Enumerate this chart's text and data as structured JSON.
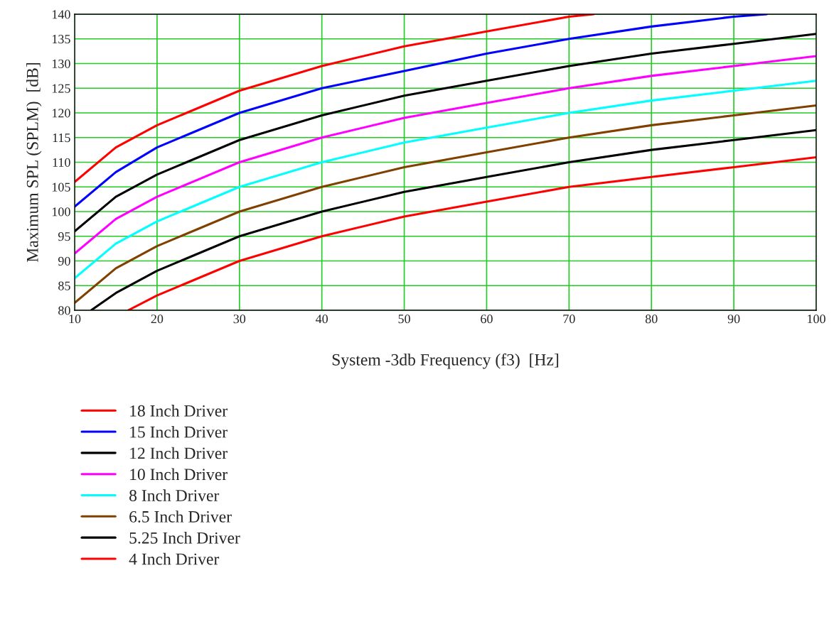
{
  "chart_data": {
    "type": "line",
    "xlabel": "System -3db Frequency (f3)  [Hz]",
    "ylabel": "Maximum SPL (SPLM)  [dB]",
    "xlim": [
      10,
      100
    ],
    "ylim": [
      80,
      140
    ],
    "xticks": [
      10,
      20,
      30,
      40,
      50,
      60,
      70,
      80,
      90,
      100
    ],
    "yticks": [
      80,
      85,
      90,
      95,
      100,
      105,
      110,
      115,
      120,
      125,
      130,
      135,
      140
    ],
    "grid": true,
    "legend": "bottom left",
    "marker": "none",
    "line_style": "solid",
    "series": [
      {
        "name": "18 Inch Driver",
        "color": "#ff0000",
        "x": [
          10,
          15,
          20,
          30,
          40,
          50,
          60,
          70,
          73
        ],
        "values": [
          106,
          113,
          117.5,
          124.5,
          129.5,
          133.5,
          136.5,
          139.5,
          140
        ]
      },
      {
        "name": "15 Inch Driver",
        "color": "#0000ff",
        "x": [
          10,
          15,
          20,
          30,
          40,
          50,
          60,
          70,
          80,
          90,
          94
        ],
        "values": [
          101,
          108,
          113,
          120,
          125,
          128.5,
          132,
          135,
          137.5,
          139.5,
          140
        ]
      },
      {
        "name": "12 Inch Driver",
        "color": "#000000",
        "x": [
          10,
          15,
          20,
          30,
          40,
          50,
          60,
          70,
          80,
          90,
          100
        ],
        "values": [
          96,
          103,
          107.5,
          114.5,
          119.5,
          123.5,
          126.5,
          129.5,
          132,
          134,
          136
        ]
      },
      {
        "name": "10 Inch Driver",
        "color": "#ff00ff",
        "x": [
          10,
          15,
          20,
          30,
          40,
          50,
          60,
          70,
          80,
          90,
          100
        ],
        "values": [
          91.5,
          98.5,
          103,
          110,
          115,
          119,
          122,
          125,
          127.5,
          129.5,
          131.5
        ]
      },
      {
        "name": "8 Inch Driver",
        "color": "#00ffff",
        "x": [
          10,
          15,
          20,
          30,
          40,
          50,
          60,
          70,
          80,
          90,
          100
        ],
        "values": [
          86.5,
          93.5,
          98,
          105,
          110,
          114,
          117,
          120,
          122.5,
          124.5,
          126.5
        ]
      },
      {
        "name": "6.5 Inch Driver",
        "color": "#804000",
        "x": [
          10,
          15,
          20,
          30,
          40,
          50,
          60,
          70,
          80,
          90,
          100
        ],
        "values": [
          81.5,
          88.5,
          93,
          100,
          105,
          109,
          112,
          115,
          117.5,
          119.5,
          121.5
        ]
      },
      {
        "name": "5.25 Inch Driver",
        "color": "#000000",
        "x": [
          12,
          15,
          20,
          30,
          40,
          50,
          60,
          70,
          80,
          90,
          100
        ],
        "values": [
          80,
          83.5,
          88,
          95,
          100,
          104,
          107,
          110,
          112.5,
          114.5,
          116.5
        ]
      },
      {
        "name": "4 Inch Driver",
        "color": "#ff0000",
        "x": [
          16.5,
          20,
          30,
          40,
          50,
          60,
          70,
          80,
          90,
          100
        ],
        "values": [
          80,
          83,
          90,
          95,
          99,
          102,
          105,
          107,
          109,
          111
        ]
      }
    ]
  }
}
